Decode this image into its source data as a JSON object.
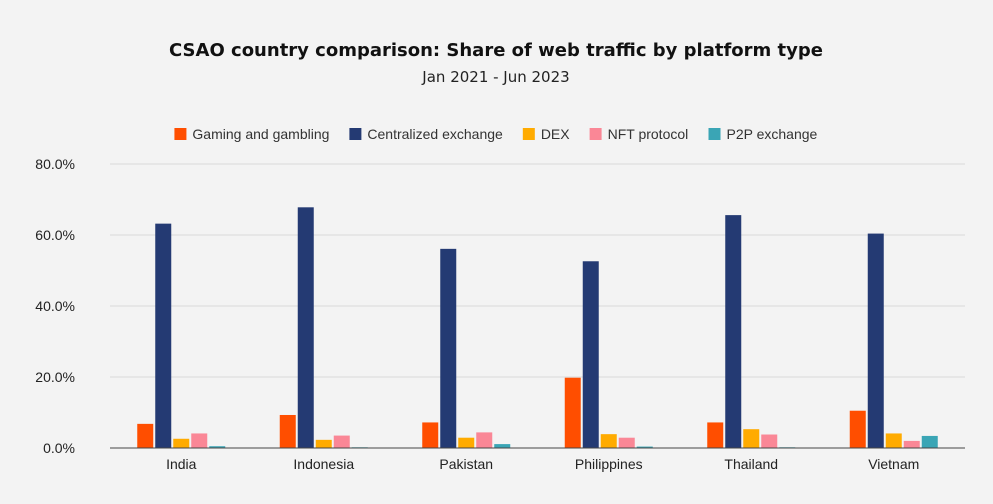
{
  "chart_data": {
    "type": "bar",
    "title": "CSAO country comparison: Share of web traffic by platform type",
    "subtitle": "Jan 2021 - Jun 2023",
    "xlabel": "",
    "ylabel": "",
    "categories": [
      "India",
      "Indonesia",
      "Pakistan",
      "Philippines",
      "Thailand",
      "Vietnam"
    ],
    "ylim": [
      0,
      80
    ],
    "yticks": [
      "0.0%",
      "20.0%",
      "40.0%",
      "60.0%",
      "80.0%"
    ],
    "grid": true,
    "legend_position": "top",
    "series": [
      {
        "name": "Gaming and gambling",
        "color": "#ff4e00",
        "values": [
          6.8,
          9.3,
          7.2,
          19.8,
          7.2,
          10.5
        ]
      },
      {
        "name": "Centralized exchange",
        "color": "#243a73",
        "values": [
          63.2,
          67.8,
          56.1,
          52.6,
          65.6,
          60.4
        ]
      },
      {
        "name": "DEX",
        "color": "#ffab00",
        "values": [
          2.6,
          2.3,
          2.9,
          3.9,
          5.3,
          4.1
        ]
      },
      {
        "name": "NFT protocol",
        "color": "#fa8796",
        "values": [
          4.1,
          3.5,
          4.4,
          2.9,
          3.8,
          2.0
        ]
      },
      {
        "name": "P2P exchange",
        "color": "#3aa5b5",
        "values": [
          0.5,
          0.2,
          1.1,
          0.4,
          0.2,
          3.4
        ]
      }
    ]
  }
}
